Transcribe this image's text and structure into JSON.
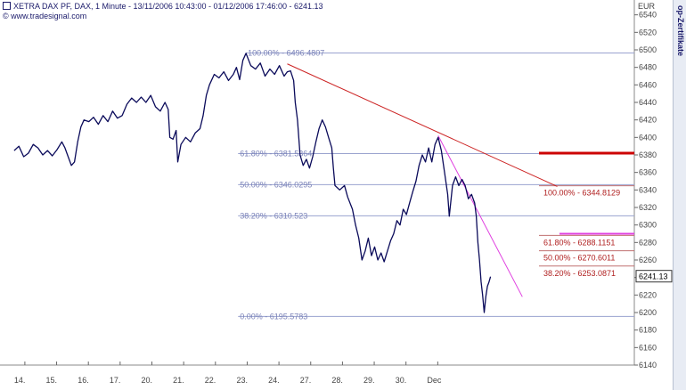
{
  "header": {
    "title": "XETRA DAX PF,  DAX, 1 Minute - 13/11/2006 10:43:00 - 01/12/2006 17:46:00 - 6241.13",
    "source": "www.tradesignal.com",
    "vertical_label": "op-Zertifikate"
  },
  "colors": {
    "price": "#0a0a5a",
    "fib_line": "#9aa3cf",
    "fib_text_blue": "#7a82b8",
    "fib_text_red": "#b02020",
    "trend_red": "#cc2222",
    "trend_magenta": "#e040e0",
    "marker_red": "#cc0000",
    "marker_magenta": "#e040e0",
    "axis": "#444444"
  },
  "chart_data": {
    "type": "line",
    "title": "XETRA DAX PF,  DAX, 1 Minute - 13/11/2006 10:43:00 - 01/12/2006 17:46:00 - 6241.13",
    "xlabel": "",
    "ylabel": "EUR",
    "ylim": [
      6130,
      6570
    ],
    "yticks": [
      6140,
      6160,
      6180,
      6200,
      6220,
      6240,
      6260,
      6280,
      6300,
      6320,
      6340,
      6360,
      6380,
      6400,
      6420,
      6440,
      6460,
      6480,
      6500,
      6520,
      6540
    ],
    "xticks": [
      "14.",
      "15.",
      "16.",
      "17.",
      "20.",
      "21.",
      "22.",
      "23.",
      "24.",
      "27.",
      "28.",
      "29.",
      "30.",
      "Dec"
    ],
    "xrange": [
      0,
      15.5
    ],
    "last_price_label": "6241.13",
    "series": [
      {
        "type": "price",
        "points": [
          [
            0.0,
            6385
          ],
          [
            0.15,
            6390
          ],
          [
            0.3,
            6378
          ],
          [
            0.45,
            6382
          ],
          [
            0.6,
            6392
          ],
          [
            0.75,
            6388
          ],
          [
            0.9,
            6380
          ],
          [
            1.05,
            6385
          ],
          [
            1.2,
            6379
          ],
          [
            1.35,
            6386
          ],
          [
            1.5,
            6395
          ],
          [
            1.6,
            6388
          ],
          [
            1.7,
            6378
          ],
          [
            1.8,
            6368
          ],
          [
            1.9,
            6372
          ],
          [
            2.0,
            6395
          ],
          [
            2.1,
            6412
          ],
          [
            2.2,
            6420
          ],
          [
            2.35,
            6418
          ],
          [
            2.5,
            6423
          ],
          [
            2.65,
            6415
          ],
          [
            2.8,
            6425
          ],
          [
            2.95,
            6418
          ],
          [
            3.1,
            6430
          ],
          [
            3.25,
            6422
          ],
          [
            3.4,
            6425
          ],
          [
            3.55,
            6438
          ],
          [
            3.7,
            6445
          ],
          [
            3.85,
            6440
          ],
          [
            4.0,
            6446
          ],
          [
            4.15,
            6440
          ],
          [
            4.3,
            6448
          ],
          [
            4.45,
            6435
          ],
          [
            4.6,
            6430
          ],
          [
            4.75,
            6440
          ],
          [
            4.85,
            6432
          ],
          [
            4.9,
            6400
          ],
          [
            5.0,
            6398
          ],
          [
            5.1,
            6408
          ],
          [
            5.15,
            6372
          ],
          [
            5.25,
            6392
          ],
          [
            5.4,
            6400
          ],
          [
            5.55,
            6395
          ],
          [
            5.7,
            6405
          ],
          [
            5.85,
            6410
          ],
          [
            5.95,
            6425
          ],
          [
            6.05,
            6448
          ],
          [
            6.15,
            6460
          ],
          [
            6.3,
            6472
          ],
          [
            6.45,
            6468
          ],
          [
            6.6,
            6475
          ],
          [
            6.75,
            6465
          ],
          [
            6.9,
            6472
          ],
          [
            7.0,
            6480
          ],
          [
            7.1,
            6466
          ],
          [
            7.2,
            6488
          ],
          [
            7.3,
            6496
          ],
          [
            7.45,
            6482
          ],
          [
            7.6,
            6478
          ],
          [
            7.75,
            6485
          ],
          [
            7.9,
            6470
          ],
          [
            8.05,
            6478
          ],
          [
            8.2,
            6472
          ],
          [
            8.35,
            6482
          ],
          [
            8.5,
            6470
          ],
          [
            8.6,
            6475
          ],
          [
            8.7,
            6476
          ],
          [
            8.8,
            6465
          ],
          [
            8.85,
            6440
          ],
          [
            8.92,
            6420
          ],
          [
            9.0,
            6380
          ],
          [
            9.1,
            6368
          ],
          [
            9.2,
            6375
          ],
          [
            9.3,
            6365
          ],
          [
            9.4,
            6378
          ],
          [
            9.5,
            6395
          ],
          [
            9.6,
            6410
          ],
          [
            9.7,
            6420
          ],
          [
            9.8,
            6412
          ],
          [
            9.9,
            6400
          ],
          [
            10.0,
            6388
          ],
          [
            10.05,
            6365
          ],
          [
            10.1,
            6345
          ],
          [
            10.25,
            6340
          ],
          [
            10.4,
            6345
          ],
          [
            10.5,
            6332
          ],
          [
            10.65,
            6318
          ],
          [
            10.75,
            6300
          ],
          [
            10.85,
            6285
          ],
          [
            10.95,
            6260
          ],
          [
            11.05,
            6270
          ],
          [
            11.15,
            6285
          ],
          [
            11.25,
            6265
          ],
          [
            11.35,
            6275
          ],
          [
            11.45,
            6260
          ],
          [
            11.55,
            6268
          ],
          [
            11.65,
            6258
          ],
          [
            11.75,
            6270
          ],
          [
            11.85,
            6282
          ],
          [
            11.95,
            6290
          ],
          [
            12.05,
            6305
          ],
          [
            12.15,
            6300
          ],
          [
            12.25,
            6318
          ],
          [
            12.35,
            6312
          ],
          [
            12.45,
            6325
          ],
          [
            12.55,
            6338
          ],
          [
            12.65,
            6350
          ],
          [
            12.75,
            6368
          ],
          [
            12.85,
            6380
          ],
          [
            12.95,
            6372
          ],
          [
            13.05,
            6388
          ],
          [
            13.15,
            6372
          ],
          [
            13.25,
            6392
          ],
          [
            13.35,
            6400
          ],
          [
            13.45,
            6385
          ],
          [
            13.55,
            6360
          ],
          [
            13.65,
            6335
          ],
          [
            13.7,
            6310
          ],
          [
            13.8,
            6345
          ],
          [
            13.9,
            6355
          ],
          [
            14.0,
            6345
          ],
          [
            14.1,
            6352
          ],
          [
            14.2,
            6345
          ],
          [
            14.3,
            6330
          ],
          [
            14.4,
            6335
          ],
          [
            14.5,
            6325
          ],
          [
            14.55,
            6310
          ],
          [
            14.6,
            6280
          ],
          [
            14.65,
            6260
          ],
          [
            14.7,
            6235
          ],
          [
            14.75,
            6220
          ],
          [
            14.8,
            6200
          ],
          [
            14.85,
            6218
          ],
          [
            14.9,
            6230
          ],
          [
            14.95,
            6235
          ],
          [
            15.0,
            6241
          ]
        ]
      }
    ],
    "fib_levels_left": [
      {
        "label": "100.00% - 6496.4807",
        "value": 6496.4807
      },
      {
        "label": "61.80% - 6381.5364",
        "value": 6381.5364
      },
      {
        "label": "50.00% - 6346.0295",
        "value": 6346.0295
      },
      {
        "label": "38.20% - 6310.523",
        "value": 6310.523
      },
      {
        "label": "0.00% - 6195.5783",
        "value": 6195.5783
      }
    ],
    "fib_levels_right": [
      {
        "label": "100.00% - 6344.8129",
        "value": 6344.8129
      },
      {
        "label": "61.80% - 6288.1151",
        "value": 6288.1151
      },
      {
        "label": "50.00% - 6270.6011",
        "value": 6270.6011
      },
      {
        "label": "38.20% - 6253.0871",
        "value": 6253.0871
      }
    ],
    "trendlines": [
      {
        "name": "red",
        "from": [
          8.6,
          6484
        ],
        "to": [
          17.1,
          6344
        ]
      },
      {
        "name": "magenta",
        "from": [
          13.35,
          6402
        ],
        "to": [
          16.0,
          6218
        ]
      }
    ],
    "markers": [
      {
        "name": "red",
        "value": 6382
      },
      {
        "name": "magenta",
        "value": 6290
      }
    ]
  }
}
